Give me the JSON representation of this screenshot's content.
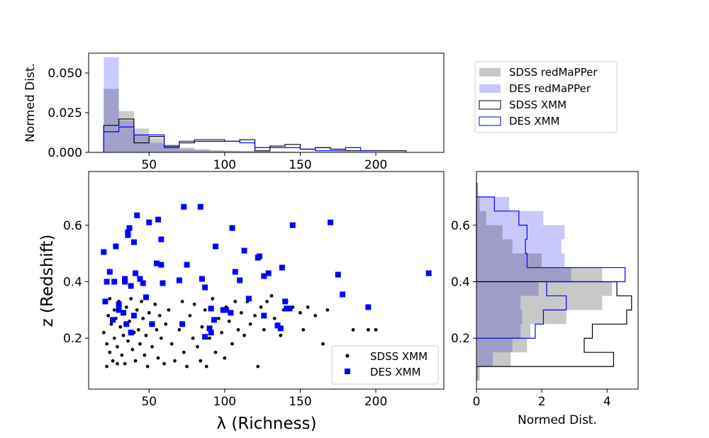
{
  "chart_data": [
    {
      "panel": "top-histogram",
      "type": "histogram",
      "ylabel": "Normed Dist.",
      "xlim": [
        10,
        245
      ],
      "ylim": [
        0,
        0.0625
      ],
      "xticks": [
        50,
        100,
        150,
        200
      ],
      "yticks": [
        0.0,
        0.025,
        0.05
      ],
      "ytick_labels": [
        "0.000",
        "0.025",
        "0.050"
      ],
      "legend_position": "right-of-panel",
      "series": [
        {
          "name": "SDSS redMaPPer",
          "style": "filled",
          "color": "#c8c8c8",
          "edges": [
            20,
            30,
            40,
            50,
            60,
            70,
            80,
            90,
            100,
            110,
            120,
            130,
            140,
            150,
            160,
            170,
            180,
            190,
            200,
            210,
            220
          ],
          "values": [
            0.04,
            0.026,
            0.015,
            0.009,
            0.005,
            0.003,
            0.002,
            0.0015,
            0.001,
            0.0008,
            0.0006,
            0.0005,
            0.0004,
            0.0003,
            0.0002,
            0.0002,
            0.0001,
            0.0001,
            0.0001,
            0.0001
          ]
        },
        {
          "name": "DES redMaPPer",
          "style": "filled",
          "color": "#c8c8ff",
          "edges": [
            20,
            30,
            40,
            50,
            60,
            70,
            80,
            90,
            100,
            110,
            120,
            130,
            140,
            150,
            160,
            170,
            180,
            190,
            200,
            210,
            220
          ],
          "values": [
            0.06,
            0.02,
            0.011,
            0.006,
            0.004,
            0.002,
            0.0015,
            0.001,
            0.0008,
            0.0006,
            0.0005,
            0.0004,
            0.0003,
            0.0002,
            0.0002,
            0.0001,
            0.0001,
            0.0001,
            0.0001,
            0.0001
          ]
        },
        {
          "name": "SDSS XMM",
          "style": "step",
          "color": "#000000",
          "edges": [
            20,
            30,
            40,
            50,
            60,
            70,
            80,
            90,
            100,
            110,
            120,
            130,
            140,
            150,
            160,
            170,
            180,
            190,
            200,
            210,
            220
          ],
          "values": [
            0.017,
            0.021,
            0.006,
            0.01,
            0.004,
            0.006,
            0.007,
            0.007,
            0.007,
            0.008,
            0.001,
            0.004,
            0.005,
            0.002,
            0.003,
            0.002,
            0.001,
            0.001,
            0.001,
            0.001
          ]
        },
        {
          "name": "DES XMM",
          "style": "step",
          "color": "#0000ff",
          "edges": [
            20,
            30,
            40,
            50,
            60,
            70,
            80,
            90,
            100,
            110,
            120,
            130,
            140,
            150,
            160,
            170,
            180,
            190,
            200
          ],
          "values": [
            0.013,
            0.016,
            0.011,
            0.011,
            0.003,
            0.007,
            0.008,
            0.008,
            0.007,
            0.006,
            0.003,
            0.003,
            0.003,
            0.002,
            0.001,
            0.001,
            0.003,
            0.001,
            0.001
          ]
        }
      ]
    },
    {
      "panel": "scatter",
      "type": "scatter",
      "xlabel": "λ (Richness)",
      "ylabel": "z (Redshift)",
      "xlim": [
        10,
        245
      ],
      "ylim": [
        0.02,
        0.79
      ],
      "xticks": [
        50,
        100,
        150,
        200
      ],
      "yticks": [
        0.2,
        0.4,
        0.6
      ],
      "ytick_labels": [
        "0.2",
        "0.4",
        "0.6"
      ],
      "legend_position": "lower-right",
      "series": [
        {
          "name": "SDSS XMM",
          "marker": "circle",
          "color": "#000000",
          "points": [
            [
              20,
              0.22
            ],
            [
              21,
              0.33
            ],
            [
              22,
              0.18
            ],
            [
              22,
              0.1
            ],
            [
              23,
              0.28
            ],
            [
              24,
              0.34
            ],
            [
              24,
              0.15
            ],
            [
              25,
              0.25
            ],
            [
              26,
              0.12
            ],
            [
              27,
              0.3
            ],
            [
              27,
              0.2
            ],
            [
              28,
              0.27
            ],
            [
              29,
              0.11
            ],
            [
              29,
              0.17
            ],
            [
              30,
              0.33
            ],
            [
              31,
              0.24
            ],
            [
              32,
              0.14
            ],
            [
              33,
              0.29
            ],
            [
              33,
              0.21
            ],
            [
              34,
              0.11
            ],
            [
              35,
              0.31
            ],
            [
              36,
              0.19
            ],
            [
              37,
              0.26
            ],
            [
              38,
              0.34
            ],
            [
              39,
              0.16
            ],
            [
              40,
              0.22
            ],
            [
              41,
              0.12
            ],
            [
              42,
              0.3
            ],
            [
              43,
              0.23
            ],
            [
              44,
              0.18
            ],
            [
              45,
              0.33
            ],
            [
              46,
              0.27
            ],
            [
              47,
              0.14
            ],
            [
              48,
              0.21
            ],
            [
              49,
              0.1
            ],
            [
              50,
              0.29
            ],
            [
              51,
              0.25
            ],
            [
              52,
              0.17
            ],
            [
              54,
              0.32
            ],
            [
              55,
              0.23
            ],
            [
              56,
              0.13
            ],
            [
              57,
              0.28
            ],
            [
              58,
              0.2
            ],
            [
              60,
              0.11
            ],
            [
              61,
              0.25
            ],
            [
              63,
              0.3
            ],
            [
              65,
              0.18
            ],
            [
              67,
              0.12
            ],
            [
              70,
              0.23
            ],
            [
              72,
              0.33
            ],
            [
              73,
              0.15
            ],
            [
              75,
              0.1
            ],
            [
              77,
              0.28
            ],
            [
              79,
              0.2
            ],
            [
              80,
              0.32
            ],
            [
              82,
              0.17
            ],
            [
              84,
              0.12
            ],
            [
              85,
              0.24
            ],
            [
              87,
              0.3
            ],
            [
              88,
              0.1
            ],
            [
              90,
              0.2
            ],
            [
              92,
              0.34
            ],
            [
              94,
              0.15
            ],
            [
              96,
              0.27
            ],
            [
              98,
              0.22
            ],
            [
              100,
              0.13
            ],
            [
              101,
              0.31
            ],
            [
              103,
              0.26
            ],
            [
              105,
              0.18
            ],
            [
              107,
              0.33
            ],
            [
              109,
              0.23
            ],
            [
              111,
              0.29
            ],
            [
              113,
              0.21
            ],
            [
              115,
              0.33
            ],
            [
              117,
              0.25
            ],
            [
              120,
              0.28
            ],
            [
              122,
              0.1
            ],
            [
              124,
              0.31
            ],
            [
              126,
              0.23
            ],
            [
              128,
              0.33
            ],
            [
              131,
              0.35
            ],
            [
              133,
              0.27
            ],
            [
              135,
              0.25
            ],
            [
              137,
              0.21
            ],
            [
              139,
              0.3
            ],
            [
              141,
              0.33
            ],
            [
              145,
              0.31
            ],
            [
              150,
              0.29
            ],
            [
              152,
              0.23
            ],
            [
              155,
              0.31
            ],
            [
              160,
              0.28
            ],
            [
              165,
              0.18
            ],
            [
              168,
              0.3
            ],
            [
              175,
              0.15
            ],
            [
              185,
              0.23
            ],
            [
              195,
              0.23
            ],
            [
              200,
              0.23
            ]
          ]
        },
        {
          "name": "DES XMM",
          "marker": "square",
          "color": "#0000ff",
          "points": [
            [
              20,
              0.505
            ],
            [
              21,
              0.33
            ],
            [
              22,
              0.4
            ],
            [
              24,
              0.435
            ],
            [
              26,
              0.265
            ],
            [
              27,
              0.4
            ],
            [
              28,
              0.525
            ],
            [
              30,
              0.32
            ],
            [
              30,
              0.3
            ],
            [
              33,
              0.29
            ],
            [
              34,
              0.41
            ],
            [
              34,
              0.4
            ],
            [
              35,
              0.25
            ],
            [
              36,
              0.565
            ],
            [
              36,
              0.575
            ],
            [
              37,
              0.59
            ],
            [
              38,
              0.22
            ],
            [
              38,
              0.385
            ],
            [
              40,
              0.54
            ],
            [
              40,
              0.28
            ],
            [
              41,
              0.43
            ],
            [
              42,
              0.635
            ],
            [
              44,
              0.41
            ],
            [
              46,
              0.395
            ],
            [
              48,
              0.345
            ],
            [
              50,
              0.61
            ],
            [
              52,
              0.25
            ],
            [
              55,
              0.465
            ],
            [
              56,
              0.62
            ],
            [
              58,
              0.55
            ],
            [
              58,
              0.46
            ],
            [
              59,
              0.395
            ],
            [
              70,
              0.405
            ],
            [
              72,
              0.25
            ],
            [
              73,
              0.665
            ],
            [
              75,
              0.46
            ],
            [
              84,
              0.665
            ],
            [
              85,
              0.41
            ],
            [
              87,
              0.38
            ],
            [
              87,
              0.205
            ],
            [
              90,
              0.235
            ],
            [
              91,
              0.22
            ],
            [
              91,
              0.305
            ],
            [
              93,
              0.265
            ],
            [
              94,
              0.525
            ],
            [
              99,
              0.3
            ],
            [
              101,
              0.3
            ],
            [
              104,
              0.29
            ],
            [
              105,
              0.59
            ],
            [
              107,
              0.435
            ],
            [
              110,
              0.405
            ],
            [
              113,
              0.51
            ],
            [
              116,
              0.34
            ],
            [
              122,
              0.485
            ],
            [
              123,
              0.49
            ],
            [
              126,
              0.42
            ],
            [
              126,
              0.28
            ],
            [
              129,
              0.43
            ],
            [
              135,
              0.245
            ],
            [
              137,
              0.235
            ],
            [
              138,
              0.45
            ],
            [
              140,
              0.33
            ],
            [
              141,
              0.305
            ],
            [
              143,
              0.305
            ],
            [
              145,
              0.6
            ],
            [
              170,
              0.61
            ],
            [
              175,
              0.425
            ],
            [
              178,
              0.355
            ],
            [
              195,
              0.31
            ],
            [
              235,
              0.43
            ]
          ]
        }
      ]
    },
    {
      "panel": "right-histogram",
      "type": "histogram-horizontal",
      "xlabel": "Normed Dist.",
      "xlim": [
        0,
        4.95
      ],
      "ylim": [
        0.02,
        0.79
      ],
      "xticks": [
        0,
        2,
        4
      ],
      "series": [
        {
          "name": "SDSS redMaPPer",
          "style": "filled",
          "color": "#c8c8c8",
          "edges": [
            0.05,
            0.1,
            0.15,
            0.2,
            0.25,
            0.3,
            0.35,
            0.4,
            0.45,
            0.5,
            0.55,
            0.6,
            0.65,
            0.7,
            0.75
          ],
          "values": [
            0.1,
            1.05,
            1.55,
            1.65,
            2.75,
            3.85,
            4.15,
            3.85,
            2.0,
            1.1,
            0.8,
            0.3,
            0.1,
            0.05
          ]
        },
        {
          "name": "DES redMaPPer",
          "style": "filled",
          "color": "#c8c8ff",
          "edges": [
            0.05,
            0.1,
            0.15,
            0.2,
            0.25,
            0.3,
            0.35,
            0.4,
            0.45,
            0.5,
            0.55,
            0.6,
            0.65,
            0.7,
            0.75
          ],
          "values": [
            0.05,
            0.5,
            1.1,
            1.35,
            1.4,
            1.35,
            1.9,
            2.9,
            2.7,
            2.6,
            2.7,
            2.05,
            1.0,
            0.05
          ]
        },
        {
          "name": "SDSS XMM",
          "style": "step",
          "color": "#000000",
          "edges": [
            0.1,
            0.15,
            0.2,
            0.25,
            0.3,
            0.35,
            0.4,
            0.45,
            0.5,
            0.55,
            0.6,
            0.65,
            0.7,
            0.75
          ],
          "values": [
            4.2,
            3.3,
            3.55,
            4.6,
            4.75,
            4.3,
            0.0,
            0.0,
            0.0,
            0.0,
            0.0,
            0.0,
            0.0
          ]
        },
        {
          "name": "DES XMM",
          "style": "step",
          "color": "#0000ff",
          "edges": [
            0.2,
            0.25,
            0.3,
            0.35,
            0.4,
            0.45,
            0.5,
            0.55,
            0.6,
            0.65,
            0.7
          ],
          "values": [
            1.8,
            2.05,
            2.75,
            2.15,
            4.55,
            1.55,
            1.5,
            1.55,
            1.3,
            0.55
          ]
        }
      ]
    }
  ]
}
